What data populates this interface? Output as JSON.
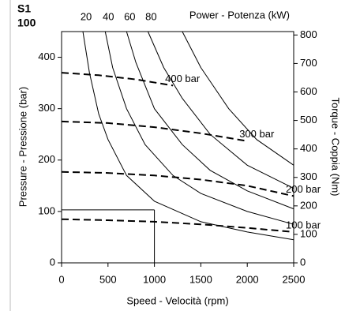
{
  "chart_data": {
    "type": "line",
    "corner_label": "S1",
    "corner_value": "100",
    "top_axis_label": "Power - Potenza (kW)",
    "xlabel": "Speed - Velocità (rpm)",
    "ylabel": "Pressure - Pressione (bar)",
    "y2label": "Torque - Coppia (Nm)",
    "xlim": [
      0,
      2500
    ],
    "xticks": [
      0,
      500,
      1000,
      1500,
      2000,
      2500
    ],
    "ylim": [
      0,
      450
    ],
    "yticks": [
      0,
      100,
      200,
      300,
      400
    ],
    "y2lim": [
      0,
      812
    ],
    "y2ticks": [
      0,
      100,
      200,
      300,
      400,
      500,
      600,
      700,
      800
    ],
    "series": [
      {
        "name": "20",
        "style": "solid",
        "color": "#000000",
        "x": [
          230,
          300,
          400,
          500,
          700,
          1000,
          1500,
          2000,
          2500
        ],
        "values": [
          450,
          370,
          290,
          240,
          170,
          120,
          80,
          60,
          45
        ]
      },
      {
        "name": "40",
        "style": "solid",
        "color": "#000000",
        "x": [
          470,
          550,
          700,
          900,
          1200,
          1500,
          2000,
          2500
        ],
        "values": [
          450,
          380,
          300,
          230,
          170,
          135,
          100,
          75
        ]
      },
      {
        "name": "60",
        "style": "solid",
        "color": "#000000",
        "x": [
          700,
          800,
          1000,
          1300,
          1600,
          2000,
          2500
        ],
        "values": [
          450,
          390,
          300,
          230,
          180,
          140,
          105
        ]
      },
      {
        "name": "80",
        "style": "solid",
        "color": "#000000",
        "x": [
          930,
          1100,
          1300,
          1600,
          2000,
          2500
        ],
        "values": [
          450,
          380,
          320,
          250,
          190,
          145
        ]
      },
      {
        "style": "solid",
        "color": "#000000",
        "x": [
          1300,
          1500,
          1800,
          2100,
          2500
        ],
        "values": [
          450,
          380,
          300,
          240,
          190
        ]
      },
      {
        "name": "400 bar",
        "style": "dashed",
        "color": "#000000",
        "x": [
          0,
          400,
          800,
          1200
        ],
        "values": [
          370,
          365,
          357,
          345
        ]
      },
      {
        "name": "300 bar",
        "style": "dashed",
        "color": "#000000",
        "x": [
          0,
          500,
          1000,
          1500,
          2000
        ],
        "values": [
          275,
          272,
          264,
          252,
          237
        ]
      },
      {
        "name": "200 bar",
        "style": "dashed",
        "color": "#000000",
        "x": [
          0,
          500,
          1000,
          1500,
          2000,
          2500
        ],
        "values": [
          177,
          175,
          170,
          162,
          150,
          130
        ]
      },
      {
        "name": "100 bar",
        "style": "dashed",
        "color": "#000000",
        "x": [
          0,
          500,
          1000,
          1500,
          2000,
          2500
        ],
        "values": [
          85,
          83,
          80,
          75,
          68,
          60
        ]
      }
    ],
    "guide": {
      "x": 1000,
      "y": 103
    }
  }
}
